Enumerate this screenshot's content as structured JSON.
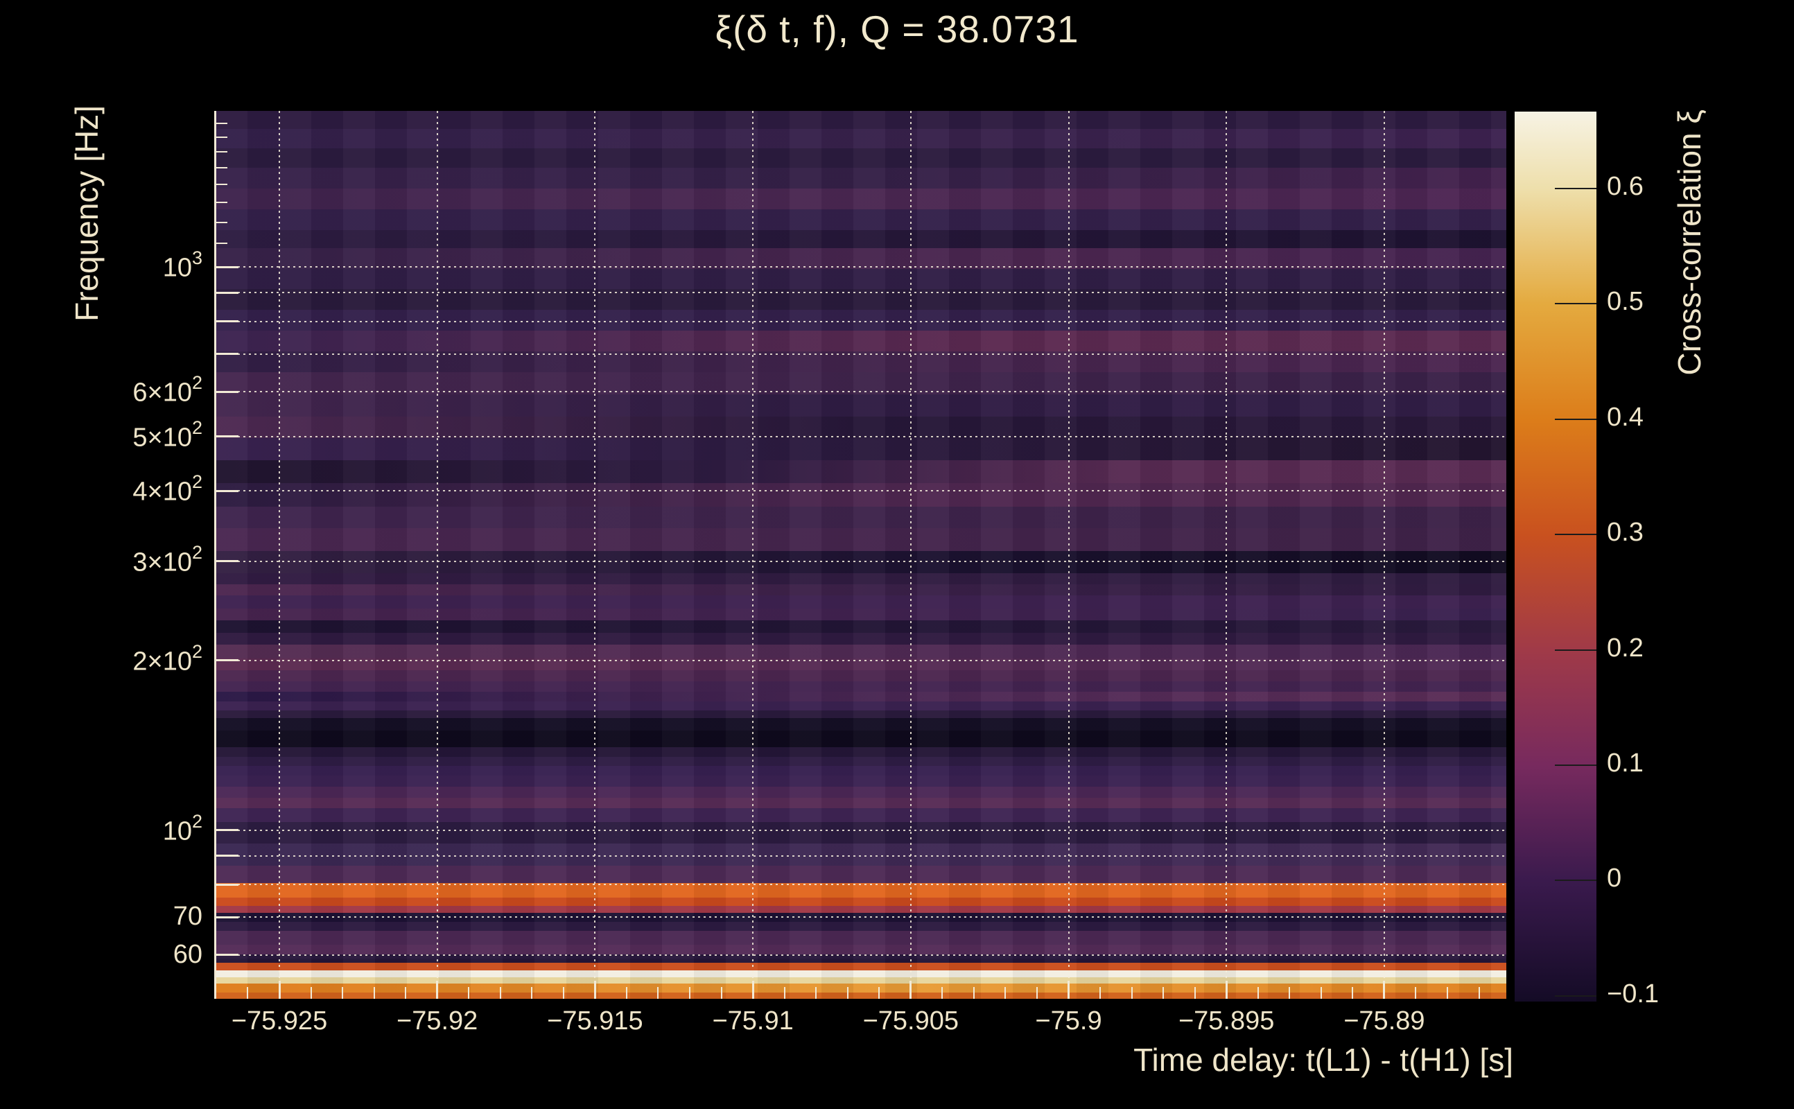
{
  "title": "ξ(δ t, f), Q = 38.0731",
  "colors": {
    "background": "#000000",
    "text": "#efe5c9",
    "axis_line": "#f2ead6",
    "gridline": "#f5eedc",
    "colorbar_tick": "#1b1b1b"
  },
  "chart_data": {
    "type": "heatmap",
    "title": "ξ(δ t, f), Q = 38.0731",
    "q_value": 38.0731,
    "xlabel": "Time delay: t(L1) - t(H1) [s]",
    "ylabel": "Frequency [Hz]",
    "colorbar_label": "Cross-correlation ξ",
    "x_range": [
      -75.927,
      -75.8861
    ],
    "y_range_hz": [
      50,
      1900
    ],
    "y_scale": "log",
    "value_range": [
      -0.104,
      0.667
    ],
    "grid": "dotted",
    "x_ticks": [
      {
        "v": -75.925,
        "label": "−75.925"
      },
      {
        "v": -75.92,
        "label": "−75.92"
      },
      {
        "v": -75.915,
        "label": "−75.915"
      },
      {
        "v": -75.91,
        "label": "−75.91"
      },
      {
        "v": -75.905,
        "label": "−75.905"
      },
      {
        "v": -75.9,
        "label": "−75.9"
      },
      {
        "v": -75.895,
        "label": "−75.895"
      },
      {
        "v": -75.89,
        "label": "−75.89"
      }
    ],
    "x_minor_step": 0.001,
    "y_ticks": [
      {
        "v": 1000,
        "pre": "10",
        "sup": "3"
      },
      {
        "v": 600,
        "pre": "6×10",
        "sup": "2"
      },
      {
        "v": 500,
        "pre": "5×10",
        "sup": "2"
      },
      {
        "v": 400,
        "pre": "4×10",
        "sup": "2"
      },
      {
        "v": 300,
        "pre": "3×10",
        "sup": "2"
      },
      {
        "v": 200,
        "pre": "2×10",
        "sup": "2"
      },
      {
        "v": 100,
        "pre": "10",
        "sup": "2"
      },
      {
        "v": 70,
        "pre": "70",
        "sup": ""
      },
      {
        "v": 60,
        "pre": "60",
        "sup": ""
      }
    ],
    "y_gridlines": [
      1000,
      900,
      800,
      700,
      600,
      500,
      400,
      300,
      200,
      100,
      90,
      80,
      70,
      60
    ],
    "y_minor_ticks": [
      1100,
      1200,
      1300,
      1400,
      1500,
      1600,
      1700,
      1800
    ],
    "colorbar_ticks": [
      {
        "v": 0.6,
        "label": "0.6"
      },
      {
        "v": 0.5,
        "label": "0.5"
      },
      {
        "v": 0.4,
        "label": "0.4"
      },
      {
        "v": 0.3,
        "label": "0.3"
      },
      {
        "v": 0.2,
        "label": "0.2"
      },
      {
        "v": 0.1,
        "label": "0.1"
      },
      {
        "v": 0.0,
        "label": "0"
      },
      {
        "v": -0.1,
        "label": "−0.1"
      }
    ],
    "colorbar_stops": [
      [
        0,
        "#f7f3e4"
      ],
      [
        8.7,
        "#eedfab"
      ],
      [
        21.6,
        "#e4aa3f"
      ],
      [
        34.6,
        "#dc7d1a"
      ],
      [
        47.6,
        "#c9511f"
      ],
      [
        60.5,
        "#a03a48"
      ],
      [
        73.5,
        "#772a5e"
      ],
      [
        86.5,
        "#3a1a4d"
      ],
      [
        99.4,
        "#160c28"
      ],
      [
        100,
        "#140b25"
      ]
    ],
    "rows": [
      [
        160,
        186,
        "#2d1b40"
      ],
      [
        186,
        214,
        "linear-gradient(90deg,#33204a,#38214b 55%,#3d2250)"
      ],
      [
        214,
        242,
        "#2b1b3e"
      ],
      [
        242,
        272,
        "linear-gradient(90deg,#37214a,#342047 50%,#44224e)"
      ],
      [
        272,
        302,
        "linear-gradient(90deg,#3f234d,#4a2751 45%,#4d2553)"
      ],
      [
        302,
        332,
        "#33204a"
      ],
      [
        332,
        358,
        "linear-gradient(90deg,#2d1c41,#241637 60%,#1d1230)"
      ],
      [
        358,
        388,
        "linear-gradient(90deg,#362148,#4c2650 65%,#452350)"
      ],
      [
        388,
        417,
        "#301e46"
      ],
      [
        417,
        447,
        "#291a3b"
      ],
      [
        447,
        477,
        "#33204b"
      ],
      [
        477,
        507,
        "linear-gradient(90deg,#3c2350,#5b2950 60%,#5c2a51)"
      ],
      [
        507,
        537,
        "linear-gradient(90deg,#311e45,#48254e 70%,#4b2550)"
      ],
      [
        537,
        569,
        "linear-gradient(90deg,#45264f,#3a2148)"
      ],
      [
        569,
        601,
        "linear-gradient(90deg,#44264f,#2f1c43 45%,#311d46)"
      ],
      [
        601,
        632,
        "linear-gradient(90deg,#4e2952,#261738 50%,#291839)"
      ],
      [
        632,
        664,
        "linear-gradient(90deg,#3a2250,#2b1a3f 45%,#23152f)"
      ],
      [
        664,
        697,
        "linear-gradient(90deg,#20142e,#2e1b41 40%,#572a52 70%,#5a2b53)"
      ],
      [
        697,
        731,
        "linear-gradient(90deg,#2c1b40,#4f2750 55%,#51274f)"
      ],
      [
        731,
        762,
        "linear-gradient(90deg,#3f244e,#3d2248)"
      ],
      [
        762,
        795,
        "linear-gradient(90deg,#4a2751,#3f2248)"
      ],
      [
        795,
        827,
        "linear-gradient(90deg,#342043,#1c1230 55%,#110b20)"
      ],
      [
        827,
        843,
        "linear-gradient(90deg,#311b42,#2f1c40)"
      ],
      [
        843,
        859,
        "linear-gradient(90deg,#4d2650,#3a2048 55%,#2f1b40)"
      ],
      [
        859,
        878,
        "#3e2150"
      ],
      [
        878,
        895,
        "linear-gradient(90deg,#47234e,#3a2150)"
      ],
      [
        895,
        913,
        "linear-gradient(90deg,#1d1230,#241637 70%,#2a1a3d)"
      ],
      [
        913,
        930,
        "#2f1a40"
      ],
      [
        930,
        950,
        "linear-gradient(90deg,#552c52,#4a2754)"
      ],
      [
        950,
        967,
        "linear-gradient(90deg,#5c2a50,#502a56)"
      ],
      [
        967,
        983,
        "#4c264f"
      ],
      [
        983,
        998,
        "#432350"
      ],
      [
        998,
        1012,
        "linear-gradient(90deg,#291745,#542b57 70%,#5a2c56)"
      ],
      [
        1012,
        1025,
        "#3b2150"
      ],
      [
        1025,
        1036,
        "#2a1a3c"
      ],
      [
        1036,
        1054,
        "#140e24"
      ],
      [
        1054,
        1078,
        "#0e091c"
      ],
      [
        1078,
        1092,
        "#241637"
      ],
      [
        1092,
        1105,
        "#2e1c44"
      ],
      [
        1105,
        1119,
        "#362050"
      ],
      [
        1119,
        1135,
        "#3b2252"
      ],
      [
        1135,
        1151,
        "#4b2756"
      ],
      [
        1151,
        1166,
        "#572b55"
      ],
      [
        1166,
        1186,
        "#3f2453"
      ],
      [
        1186,
        1217,
        "linear-gradient(90deg,#2c1c41,#2a1a3e)"
      ],
      [
        1217,
        1249,
        "linear-gradient(90deg,#3a2752,#432a56)"
      ],
      [
        1249,
        1274,
        "#4e2a55"
      ],
      [
        1274,
        1295,
        "#e2671f"
      ],
      [
        1295,
        1307,
        "#cb4a1c"
      ],
      [
        1307,
        1317,
        "#a23846"
      ],
      [
        1317,
        1330,
        "#1c1133"
      ],
      [
        1330,
        1343,
        "#2c1a40"
      ],
      [
        1343,
        1363,
        "#4b2853"
      ],
      [
        1363,
        1377,
        "#542b57"
      ],
      [
        1377,
        1383,
        "#2a193d"
      ],
      [
        1383,
        1389,
        "#231536"
      ],
      [
        1389,
        1400,
        "#cc4f1d"
      ],
      [
        1400,
        1410,
        "#f3efe2"
      ],
      [
        1410,
        1419,
        "#e8d69c"
      ],
      [
        1419,
        1432,
        "linear-gradient(90deg,#df7c1b,#e89b35 55%,#e0821f)"
      ],
      [
        1432,
        1441,
        "#d2621a"
      ]
    ]
  }
}
